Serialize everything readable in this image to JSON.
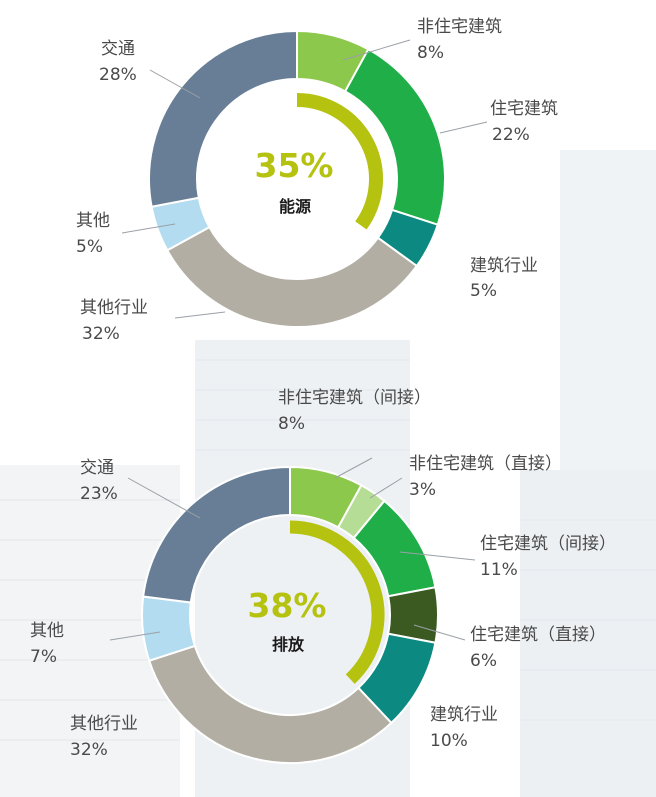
{
  "chart_data": [
    {
      "type": "pie",
      "subtype": "donut",
      "center_value": "35%",
      "center_label": "能源",
      "center_highlight_fraction": 0.35,
      "slices": [
        {
          "name": "非住宅建筑",
          "pct_label": "8%",
          "value": 8,
          "color": "#8cc84b"
        },
        {
          "name": "住宅建筑",
          "pct_label": "22%",
          "value": 22,
          "color": "#1fae48"
        },
        {
          "name": "建筑行业",
          "pct_label": "5%",
          "value": 5,
          "color": "#0c8a82"
        },
        {
          "name": "其他行业",
          "pct_label": "32%",
          "value": 32,
          "color": "#b2aea3"
        },
        {
          "name": "其他",
          "pct_label": "5%",
          "value": 5,
          "color": "#b3dcf1"
        },
        {
          "name": "交通",
          "pct_label": "28%",
          "value": 28,
          "color": "#687e96"
        }
      ],
      "highlight_color": "#b5c20f"
    },
    {
      "type": "pie",
      "subtype": "donut",
      "center_value": "38%",
      "center_label": "排放",
      "center_highlight_fraction": 0.38,
      "slices": [
        {
          "name": "非住宅建筑（间接）",
          "pct_label": "8%",
          "value": 8,
          "color": "#8cc84b"
        },
        {
          "name": "非住宅建筑（直接）",
          "pct_label": "3%",
          "value": 3,
          "color": "#b6dd95"
        },
        {
          "name": "住宅建筑（间接）",
          "pct_label": "11%",
          "value": 11,
          "color": "#1fae48"
        },
        {
          "name": "住宅建筑（直接）",
          "pct_label": "6%",
          "value": 6,
          "color": "#3b5a22"
        },
        {
          "name": "建筑行业",
          "pct_label": "10%",
          "value": 10,
          "color": "#0c8a82"
        },
        {
          "name": "其他行业",
          "pct_label": "32%",
          "value": 32,
          "color": "#b2aea3"
        },
        {
          "name": "其他",
          "pct_label": "7%",
          "value": 7,
          "color": "#b3dcf1"
        },
        {
          "name": "交通",
          "pct_label": "23%",
          "value": 23,
          "color": "#687e96"
        }
      ],
      "highlight_color": "#b5c20f"
    }
  ]
}
